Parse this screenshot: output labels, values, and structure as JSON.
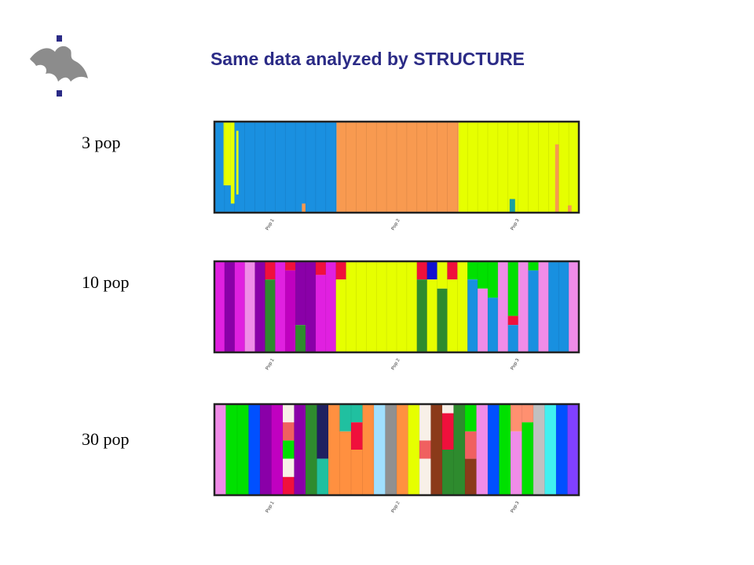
{
  "header": {
    "title": "Same data analyzed by STRUCTURE"
  },
  "panels": [
    {
      "label": "3 pop",
      "groups": [
        "Pop 1",
        "Pop 2",
        "Pop 3"
      ]
    },
    {
      "label": "10 pop",
      "groups": [
        "Pop 1",
        "Pop 2",
        "Pop 3"
      ]
    },
    {
      "label": "30 pop",
      "groups": [
        "Pop 1",
        "Pop 2",
        "Pop 3"
      ]
    }
  ]
}
